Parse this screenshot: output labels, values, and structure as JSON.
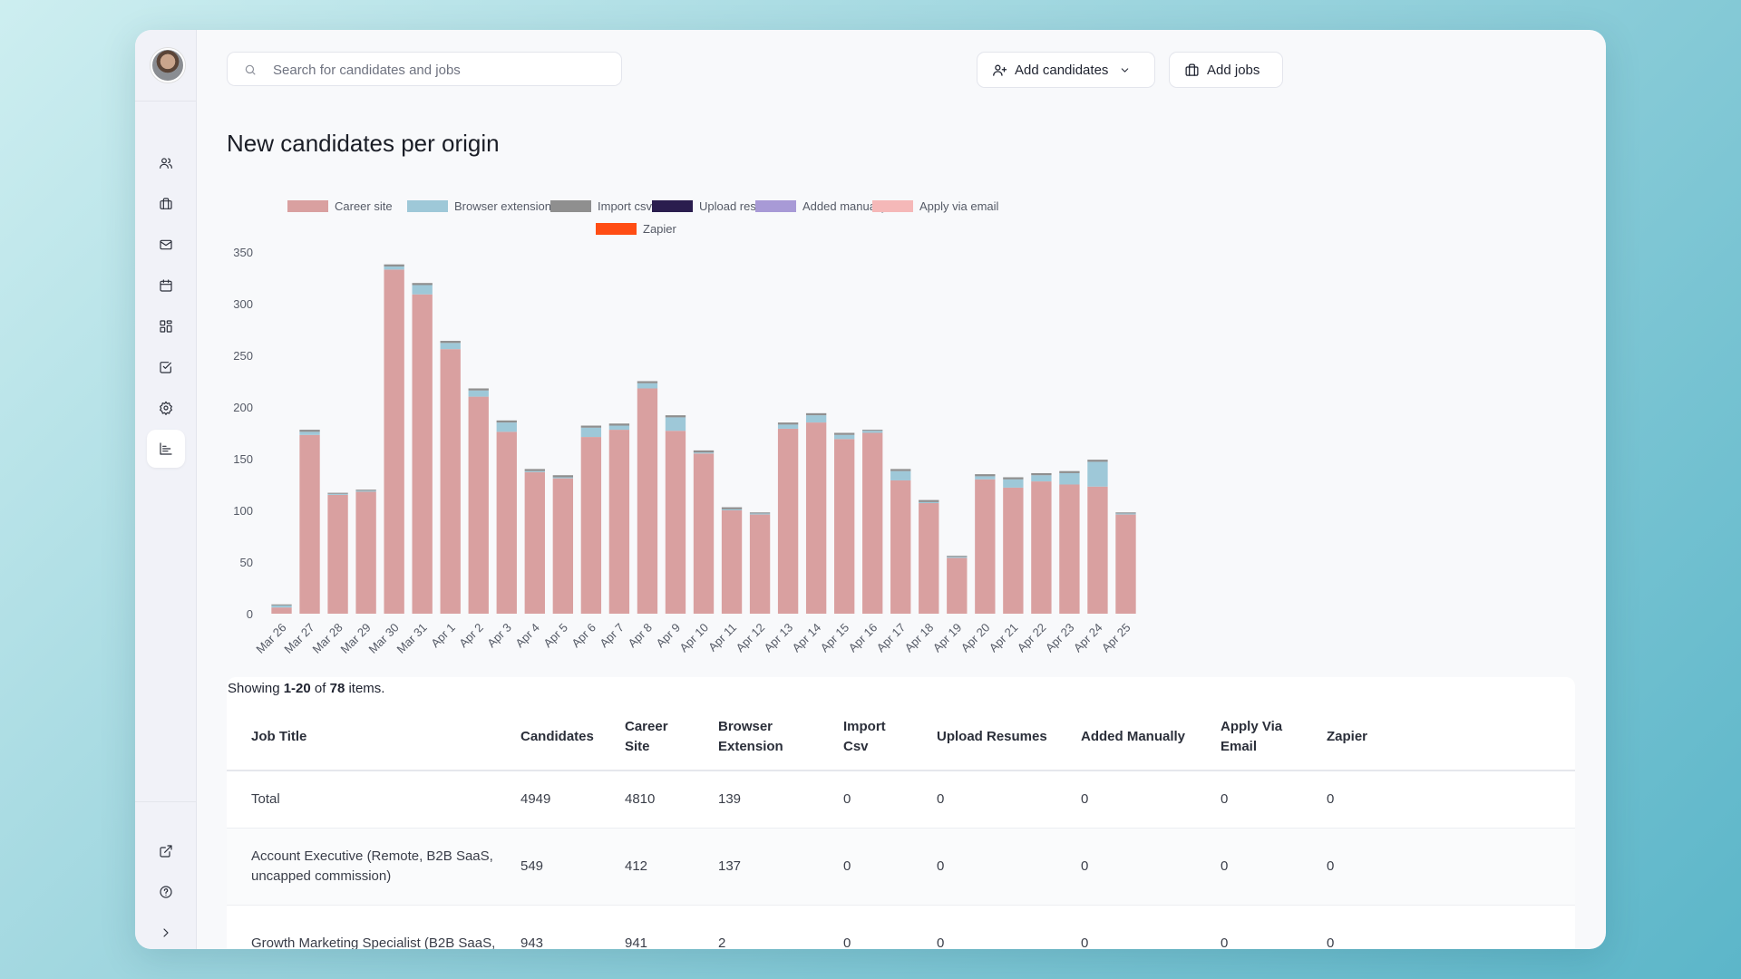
{
  "search": {
    "placeholder": "Search for candidates and jobs"
  },
  "header": {
    "add_candidates": "Add candidates",
    "add_jobs": "Add jobs"
  },
  "sidebar": {
    "top_icons": [
      "users-icon",
      "briefcase-icon",
      "mail-icon",
      "calendar-icon",
      "dashboard-icon",
      "checkbox-icon",
      "settings-icon",
      "chart-icon"
    ],
    "active": "chart-icon",
    "bottom_icons": [
      "external-link-icon",
      "help-icon",
      "chevron-right-icon"
    ]
  },
  "page": {
    "title": "New candidates per origin"
  },
  "chart_data": {
    "type": "bar",
    "stacked": true,
    "title": "New candidates per origin",
    "ylim": [
      0,
      350
    ],
    "yticks": [
      0,
      50,
      100,
      150,
      200,
      250,
      300,
      350
    ],
    "grid": false,
    "legend_position": "top",
    "categories": [
      "Mar 26",
      "Mar 27",
      "Mar 28",
      "Mar 29",
      "Mar 30",
      "Mar 31",
      "Apr 1",
      "Apr 2",
      "Apr 3",
      "Apr 4",
      "Apr 5",
      "Apr 6",
      "Apr 7",
      "Apr 8",
      "Apr 9",
      "Apr 10",
      "Apr 11",
      "Apr 12",
      "Apr 13",
      "Apr 14",
      "Apr 15",
      "Apr 16",
      "Apr 17",
      "Apr 18",
      "Apr 19",
      "Apr 20",
      "Apr 21",
      "Apr 22",
      "Apr 23",
      "Apr 24",
      "Apr 25"
    ],
    "series": [
      {
        "name": "Career site",
        "color": "#d9a0a0",
        "values": [
          6,
          173,
          115,
          118,
          333,
          309,
          256,
          210,
          176,
          137,
          131,
          171,
          178,
          218,
          177,
          155,
          100,
          96,
          179,
          185,
          169,
          175,
          129,
          107,
          54,
          130,
          122,
          128,
          125,
          123,
          96
        ]
      },
      {
        "name": "Browser extension",
        "color": "#9ec8d8",
        "values": [
          2,
          3,
          1,
          1,
          3,
          9,
          6,
          6,
          9,
          1,
          1,
          9,
          4,
          5,
          13,
          1,
          1,
          1,
          4,
          7,
          4,
          2,
          9,
          1,
          1,
          3,
          8,
          6,
          11,
          24,
          1
        ]
      },
      {
        "name": "Import csv",
        "color": "#8f8f8f",
        "values": [
          1,
          2,
          1,
          1,
          2,
          2,
          2,
          2,
          2,
          2,
          2,
          2,
          2,
          2,
          2,
          2,
          2,
          1,
          2,
          2,
          2,
          1,
          2,
          2,
          1,
          2,
          2,
          2,
          2,
          2,
          1
        ]
      },
      {
        "name": "Upload resumes",
        "color": "#2a1d4e",
        "values": [
          0,
          0,
          0,
          0,
          0,
          0,
          0,
          0,
          0,
          0,
          0,
          0,
          0,
          0,
          0,
          0,
          0,
          0,
          0,
          0,
          0,
          0,
          0,
          0,
          0,
          0,
          0,
          0,
          0,
          0,
          0
        ]
      },
      {
        "name": "Added manually",
        "color": "#a89ad6",
        "values": [
          0,
          0,
          0,
          0,
          0,
          0,
          0,
          0,
          0,
          0,
          0,
          0,
          0,
          0,
          0,
          0,
          0,
          0,
          0,
          0,
          0,
          0,
          0,
          0,
          0,
          0,
          0,
          0,
          0,
          0,
          0
        ]
      },
      {
        "name": "Apply via email",
        "color": "#f5b8b8",
        "values": [
          0,
          0,
          0,
          0,
          0,
          0,
          0,
          0,
          0,
          0,
          0,
          0,
          0,
          0,
          0,
          0,
          0,
          0,
          0,
          0,
          0,
          0,
          0,
          0,
          0,
          0,
          0,
          0,
          0,
          0,
          0
        ]
      },
      {
        "name": "Zapier",
        "color": "#ff4d14",
        "values": [
          0,
          0,
          0,
          0,
          0,
          0,
          0,
          0,
          0,
          0,
          0,
          0,
          0,
          0,
          0,
          0,
          0,
          0,
          0,
          0,
          0,
          0,
          0,
          0,
          0,
          0,
          0,
          0,
          0,
          0,
          0
        ]
      }
    ]
  },
  "table": {
    "showing_prefix": "Showing ",
    "showing_range": "1-20",
    "showing_mid": " of ",
    "showing_total": "78",
    "showing_suffix": " items.",
    "columns": [
      "Job Title",
      "Candidates",
      "Career Site",
      "Browser Extension",
      "Import Csv",
      "Upload Resumes",
      "Added Manually",
      "Apply Via Email",
      "Zapier"
    ],
    "rows": [
      [
        "Total",
        "4949",
        "4810",
        "139",
        "0",
        "0",
        "0",
        "0",
        "0"
      ],
      [
        "Account Executive (Remote, B2B SaaS, uncapped commission)",
        "549",
        "412",
        "137",
        "0",
        "0",
        "0",
        "0",
        "0"
      ],
      [
        "Growth Marketing Specialist (B2B SaaS,",
        "943",
        "941",
        "2",
        "0",
        "0",
        "0",
        "0",
        "0"
      ]
    ]
  }
}
